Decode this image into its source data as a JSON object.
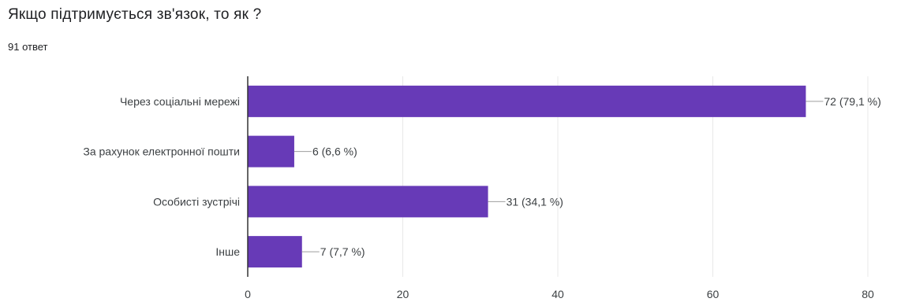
{
  "header": {
    "title": "Якщо підтримується зв'язок, то як ?",
    "response_count": "91 ответ"
  },
  "chart_data": {
    "type": "bar",
    "orientation": "horizontal",
    "categories": [
      "Через соціальні мережі",
      "За рахунок електронної пошти",
      "Особисті зустрічі",
      "Інше"
    ],
    "values": [
      72,
      6,
      31,
      7
    ],
    "data_labels": [
      "72 (79,1 %)",
      "6 (6,6 %)",
      "31 (34,1 %)",
      "7 (7,7 %)"
    ],
    "xlim": [
      0,
      80
    ],
    "ticks": [
      0,
      20,
      40,
      60,
      80
    ],
    "grid": true,
    "colors": {
      "bar": "#673ab7",
      "grid": "#e8e8e8",
      "axis": "#333333"
    }
  }
}
